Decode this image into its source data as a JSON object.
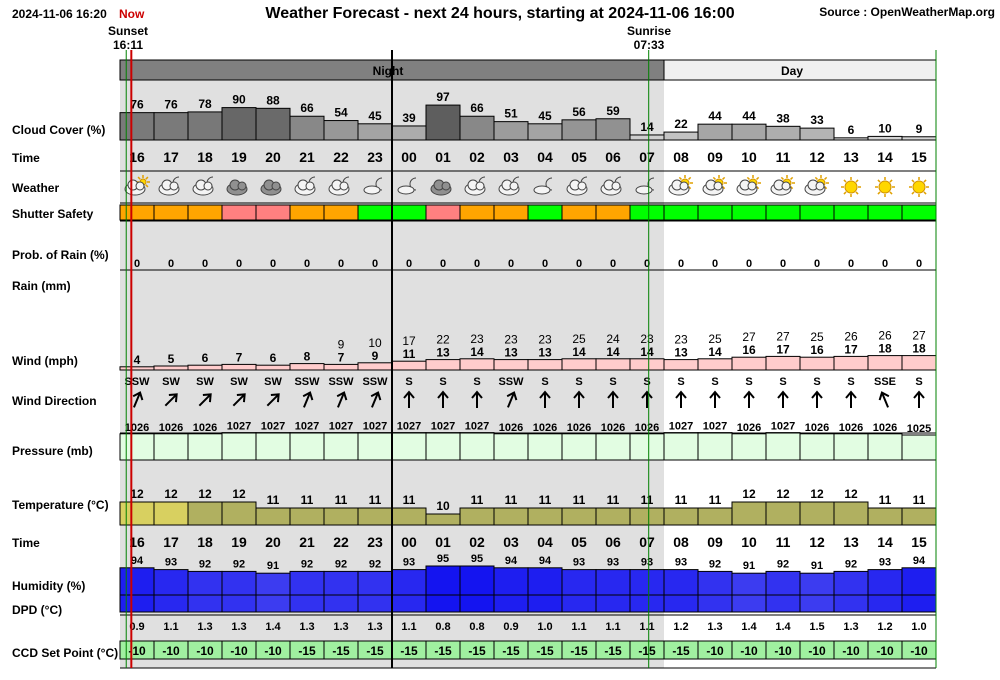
{
  "header": {
    "timestamp": "2024-11-06 16:20",
    "now_label": "Now",
    "title": "Weather Forecast - next 24 hours, starting at 2024-11-06 16:00",
    "source": "Source : OpenWeatherMap.org"
  },
  "events": {
    "sunset_label": "Sunset",
    "sunset_time": "16:11",
    "sunrise_label": "Sunrise",
    "sunrise_time": "07:33"
  },
  "period_labels": {
    "night": "Night",
    "day": "Day"
  },
  "row_labels": {
    "cloud": "Cloud Cover (%)",
    "time": "Time",
    "weather": "Weather",
    "shutter": "Shutter Safety",
    "rain_prob": "Prob. of Rain (%)",
    "rain": "Rain (mm)",
    "wind": "Wind (mph)",
    "wind_dir": "Wind Direction",
    "pressure": "Pressure (mb)",
    "temperature": "Temperature (°C)",
    "time2": "Time",
    "humidity": "Humidity (%)",
    "dpd": "DPD (°C)",
    "ccd": "CCD Set Point (°C)"
  },
  "colors": {
    "night_bg": "#e0e0e0",
    "period_bar_night": "#808080",
    "now_line": "#cc0000",
    "midnight_line": "#000000",
    "sunrise_line": "#008000",
    "pressure_fill": "#e2fde2",
    "wind_fill": "#ffcccc",
    "humidity_fill": "#5050f0",
    "ccd_fill": "#a0f0a0",
    "shutter_green": "#00ff00",
    "shutter_orange": "#ffa500",
    "shutter_pink": "#ff8080"
  },
  "chart_data": {
    "type": "table",
    "hours": [
      "16",
      "17",
      "18",
      "19",
      "20",
      "21",
      "22",
      "23",
      "00",
      "01",
      "02",
      "03",
      "04",
      "05",
      "06",
      "07",
      "08",
      "09",
      "10",
      "11",
      "12",
      "13",
      "14",
      "15"
    ],
    "weather_icons": [
      "cloud-sun-icon",
      "cloud-moon-icon",
      "cloud-moon-icon",
      "cloud-icon",
      "cloud-icon",
      "cloud-moon-icon",
      "cloud-moon-icon",
      "moon-cloud-icon",
      "moon-cloud-icon",
      "cloud-icon",
      "cloud-moon-icon",
      "cloud-moon-icon",
      "moon-cloud-icon",
      "cloud-moon-icon",
      "cloud-moon-icon",
      "moon-cloud-icon",
      "sun-cloud-icon",
      "sun-cloud-icon",
      "sun-cloud-icon",
      "sun-cloud-icon",
      "sun-cloud-icon",
      "sun-icon",
      "sun-icon",
      "sun-icon"
    ],
    "cloud_cover": [
      76,
      76,
      78,
      90,
      88,
      66,
      54,
      45,
      39,
      97,
      66,
      51,
      45,
      56,
      59,
      14,
      22,
      44,
      44,
      38,
      33,
      6,
      10,
      9
    ],
    "shutter_safety": [
      "orange",
      "orange",
      "orange",
      "pink",
      "pink",
      "orange",
      "orange",
      "green",
      "green",
      "pink",
      "orange",
      "orange",
      "green",
      "orange",
      "orange",
      "green",
      "green",
      "green",
      "green",
      "green",
      "green",
      "green",
      "green",
      "green"
    ],
    "rain_probability": [
      0,
      0,
      0,
      0,
      0,
      0,
      0,
      0,
      0,
      0,
      0,
      0,
      0,
      0,
      0,
      0,
      0,
      0,
      0,
      0,
      0,
      0,
      0,
      0
    ],
    "rain_mm": [
      0,
      0,
      0,
      0,
      0,
      0,
      0,
      0,
      0,
      0,
      0,
      0,
      0,
      0,
      0,
      0,
      0,
      0,
      0,
      0,
      0,
      0,
      0,
      0
    ],
    "wind_speed": [
      4,
      5,
      6,
      7,
      6,
      8,
      7,
      9,
      11,
      13,
      14,
      13,
      13,
      14,
      14,
      14,
      13,
      14,
      16,
      17,
      16,
      17,
      18,
      18
    ],
    "wind_gust": [
      null,
      null,
      null,
      null,
      null,
      null,
      9,
      10,
      17,
      22,
      23,
      23,
      23,
      25,
      24,
      23,
      23,
      25,
      27,
      27,
      25,
      26,
      26,
      27
    ],
    "wind_direction": [
      "SSW",
      "SW",
      "SW",
      "SW",
      "SW",
      "SSW",
      "SSW",
      "SSW",
      "S",
      "S",
      "S",
      "SSW",
      "S",
      "S",
      "S",
      "S",
      "S",
      "S",
      "S",
      "S",
      "S",
      "S",
      "SSE",
      "S"
    ],
    "pressure": [
      1026,
      1026,
      1026,
      1027,
      1027,
      1027,
      1027,
      1027,
      1027,
      1027,
      1027,
      1026,
      1026,
      1026,
      1026,
      1026,
      1027,
      1027,
      1026,
      1027,
      1026,
      1026,
      1026,
      1025
    ],
    "temperature": [
      12,
      12,
      12,
      12,
      11,
      11,
      11,
      11,
      11,
      10,
      11,
      11,
      11,
      11,
      11,
      11,
      11,
      11,
      12,
      12,
      12,
      12,
      11,
      11
    ],
    "humidity": [
      94,
      93,
      92,
      92,
      91,
      92,
      92,
      92,
      93,
      95,
      95,
      94,
      94,
      93,
      93,
      93,
      93,
      92,
      91,
      92,
      91,
      92,
      93,
      94
    ],
    "dpd": [
      "0.9",
      "1.1",
      "1.3",
      "1.3",
      "1.4",
      "1.3",
      "1.3",
      "1.3",
      "1.1",
      "0.8",
      "0.8",
      "0.9",
      "1.0",
      "1.1",
      "1.1",
      "1.1",
      "1.2",
      "1.3",
      "1.4",
      "1.4",
      "1.5",
      "1.3",
      "1.2",
      "1.0"
    ],
    "ccd_set_point": [
      -10,
      -10,
      -10,
      -10,
      -10,
      -15,
      -15,
      -15,
      -15,
      -15,
      -15,
      -15,
      -15,
      -15,
      -15,
      -15,
      -15,
      -10,
      -10,
      -10,
      -10,
      -10,
      -10,
      -10
    ],
    "night_hours": 16,
    "now_hour_fraction": 0.333,
    "sunset_hour_fraction": 0.183,
    "sunrise_hour_fraction": 15.55
  }
}
